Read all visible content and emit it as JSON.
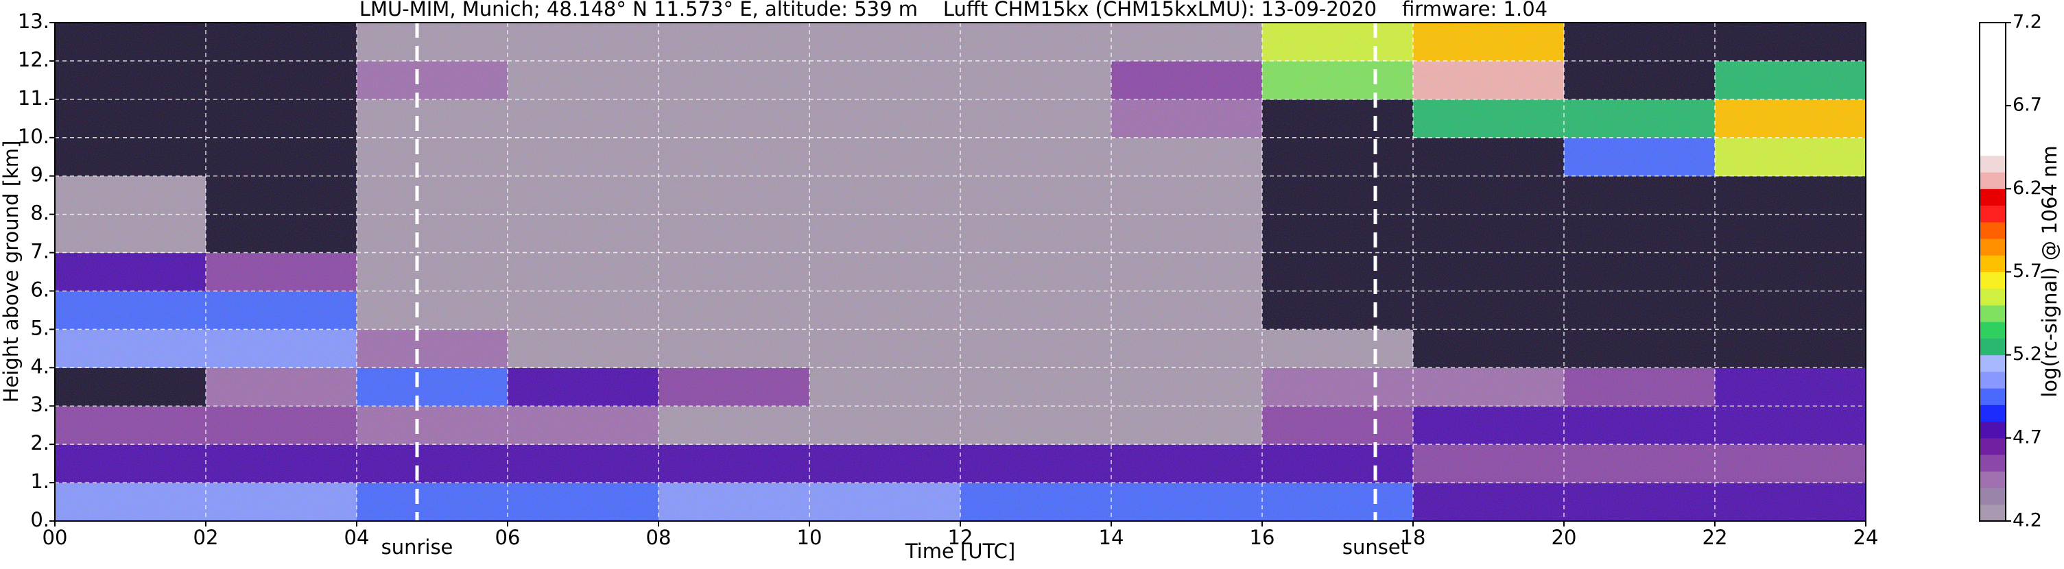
{
  "chart_data": {
    "type": "heatmap",
    "title": "LMU-MIM, Munich; 48.148° N 11.573° E, altitude: 539 m    Lufft CHM15kx (CHM15kxLMU): 13-09-2020    firmware: 1.04",
    "x_label": "Time [UTC]",
    "y_label": "Height above ground [km]",
    "colorbar_label": "log(rc-signal) @ 1064 nm",
    "x_bins": [
      0,
      2,
      4,
      6,
      8,
      10,
      12,
      14,
      16,
      18,
      20,
      22,
      24
    ],
    "y_bins": [
      0,
      1,
      2,
      3,
      4,
      5,
      6,
      7,
      8,
      9,
      10,
      11,
      12,
      13
    ],
    "z": [
      [
        5.1,
        5.1,
        5.0,
        5.0,
        5.1,
        5.1,
        5.0,
        5.0,
        5.0,
        4.8,
        4.8,
        4.8
      ],
      [
        4.8,
        4.8,
        4.8,
        4.7,
        4.7,
        4.8,
        4.8,
        4.7,
        4.7,
        4.6,
        4.6,
        4.6
      ],
      [
        4.6,
        4.6,
        4.4,
        4.4,
        4.3,
        4.3,
        4.3,
        4.3,
        4.6,
        4.8,
        4.7,
        4.7
      ],
      [
        4.0,
        4.4,
        4.9,
        4.8,
        4.6,
        4.3,
        4.3,
        4.3,
        4.5,
        4.5,
        4.6,
        4.7
      ],
      [
        5.1,
        5.1,
        4.4,
        4.3,
        4.3,
        4.3,
        4.3,
        4.3,
        4.2,
        4.0,
        4.0,
        4.0
      ],
      [
        5.0,
        5.0,
        4.3,
        4.3,
        4.3,
        4.3,
        4.3,
        4.3,
        4.1,
        4.0,
        4.0,
        4.0
      ],
      [
        4.7,
        4.6,
        4.3,
        4.3,
        4.3,
        4.3,
        4.3,
        4.3,
        4.1,
        4.0,
        4.0,
        4.0
      ],
      [
        4.3,
        4.1,
        4.3,
        4.3,
        4.3,
        4.3,
        4.3,
        4.3,
        4.1,
        4.0,
        4.0,
        4.0
      ],
      [
        4.2,
        4.1,
        4.3,
        4.3,
        4.3,
        4.3,
        4.3,
        4.3,
        4.1,
        4.0,
        4.0,
        4.0
      ],
      [
        4.1,
        4.1,
        4.3,
        4.3,
        4.3,
        4.3,
        4.3,
        4.3,
        4.1,
        4.0,
        5.0,
        5.6
      ],
      [
        4.1,
        4.1,
        4.3,
        4.3,
        4.3,
        4.3,
        4.3,
        4.4,
        4.1,
        5.3,
        5.2,
        5.8
      ],
      [
        4.1,
        4.1,
        4.4,
        4.3,
        4.3,
        4.3,
        4.3,
        4.6,
        5.4,
        6.2,
        4.0,
        5.2
      ],
      [
        4.1,
        4.1,
        4.3,
        4.3,
        4.3,
        4.3,
        4.3,
        4.3,
        5.6,
        5.8,
        4.0,
        4.0
      ]
    ],
    "clim": [
      4.2,
      7.2
    ],
    "colormap": [
      "#a898b0",
      "#9a84aa",
      "#a070b0",
      "#8c48a8",
      "#7020a0",
      "#5010b0",
      "#1c2cff",
      "#4a6aff",
      "#8898ff",
      "#a8b8ff",
      "#2ab870",
      "#30d060",
      "#80e060",
      "#d0f040",
      "#f8f020",
      "#ffc000",
      "#ff9000",
      "#ff6000",
      "#ff2020",
      "#e80000",
      "#f0b0b0",
      "#f0d8d8",
      "#ffffff",
      "#ffffff",
      "#ffffff",
      "#ffffff",
      "#ffffff",
      "#ffffff",
      "#ffffff",
      "#ffffff"
    ],
    "under_color": "#1e1434",
    "xlim": [
      0,
      24
    ],
    "ylim": [
      0,
      13
    ],
    "xticks": [
      {
        "value": 0,
        "label": "00"
      },
      {
        "value": 2,
        "label": "02"
      },
      {
        "value": 4,
        "label": "04"
      },
      {
        "value": 6,
        "label": "06"
      },
      {
        "value": 8,
        "label": "08"
      },
      {
        "value": 10,
        "label": "10"
      },
      {
        "value": 12,
        "label": "12"
      },
      {
        "value": 14,
        "label": "14"
      },
      {
        "value": 16,
        "label": "16"
      },
      {
        "value": 18,
        "label": "18"
      },
      {
        "value": 20,
        "label": "20"
      },
      {
        "value": 22,
        "label": "22"
      },
      {
        "value": 24,
        "label": "24"
      }
    ],
    "yticks": [
      {
        "value": 0,
        "label": "0."
      },
      {
        "value": 1,
        "label": "1."
      },
      {
        "value": 2,
        "label": "2."
      },
      {
        "value": 3,
        "label": "3."
      },
      {
        "value": 4,
        "label": "4."
      },
      {
        "value": 5,
        "label": "5."
      },
      {
        "value": 6,
        "label": "6."
      },
      {
        "value": 7,
        "label": "7."
      },
      {
        "value": 8,
        "label": "8."
      },
      {
        "value": 9,
        "label": "9."
      },
      {
        "value": 10,
        "label": "10."
      },
      {
        "value": 11,
        "label": "11."
      },
      {
        "value": 12,
        "label": "12."
      },
      {
        "value": 13,
        "label": "13."
      }
    ],
    "cticks": [
      4.2,
      4.7,
      5.2,
      5.7,
      6.2,
      6.7,
      7.2
    ],
    "grid": true,
    "annotations": [
      {
        "label": "sunrise",
        "x": 4.8
      },
      {
        "label": "sunset",
        "x": 17.5
      }
    ]
  }
}
